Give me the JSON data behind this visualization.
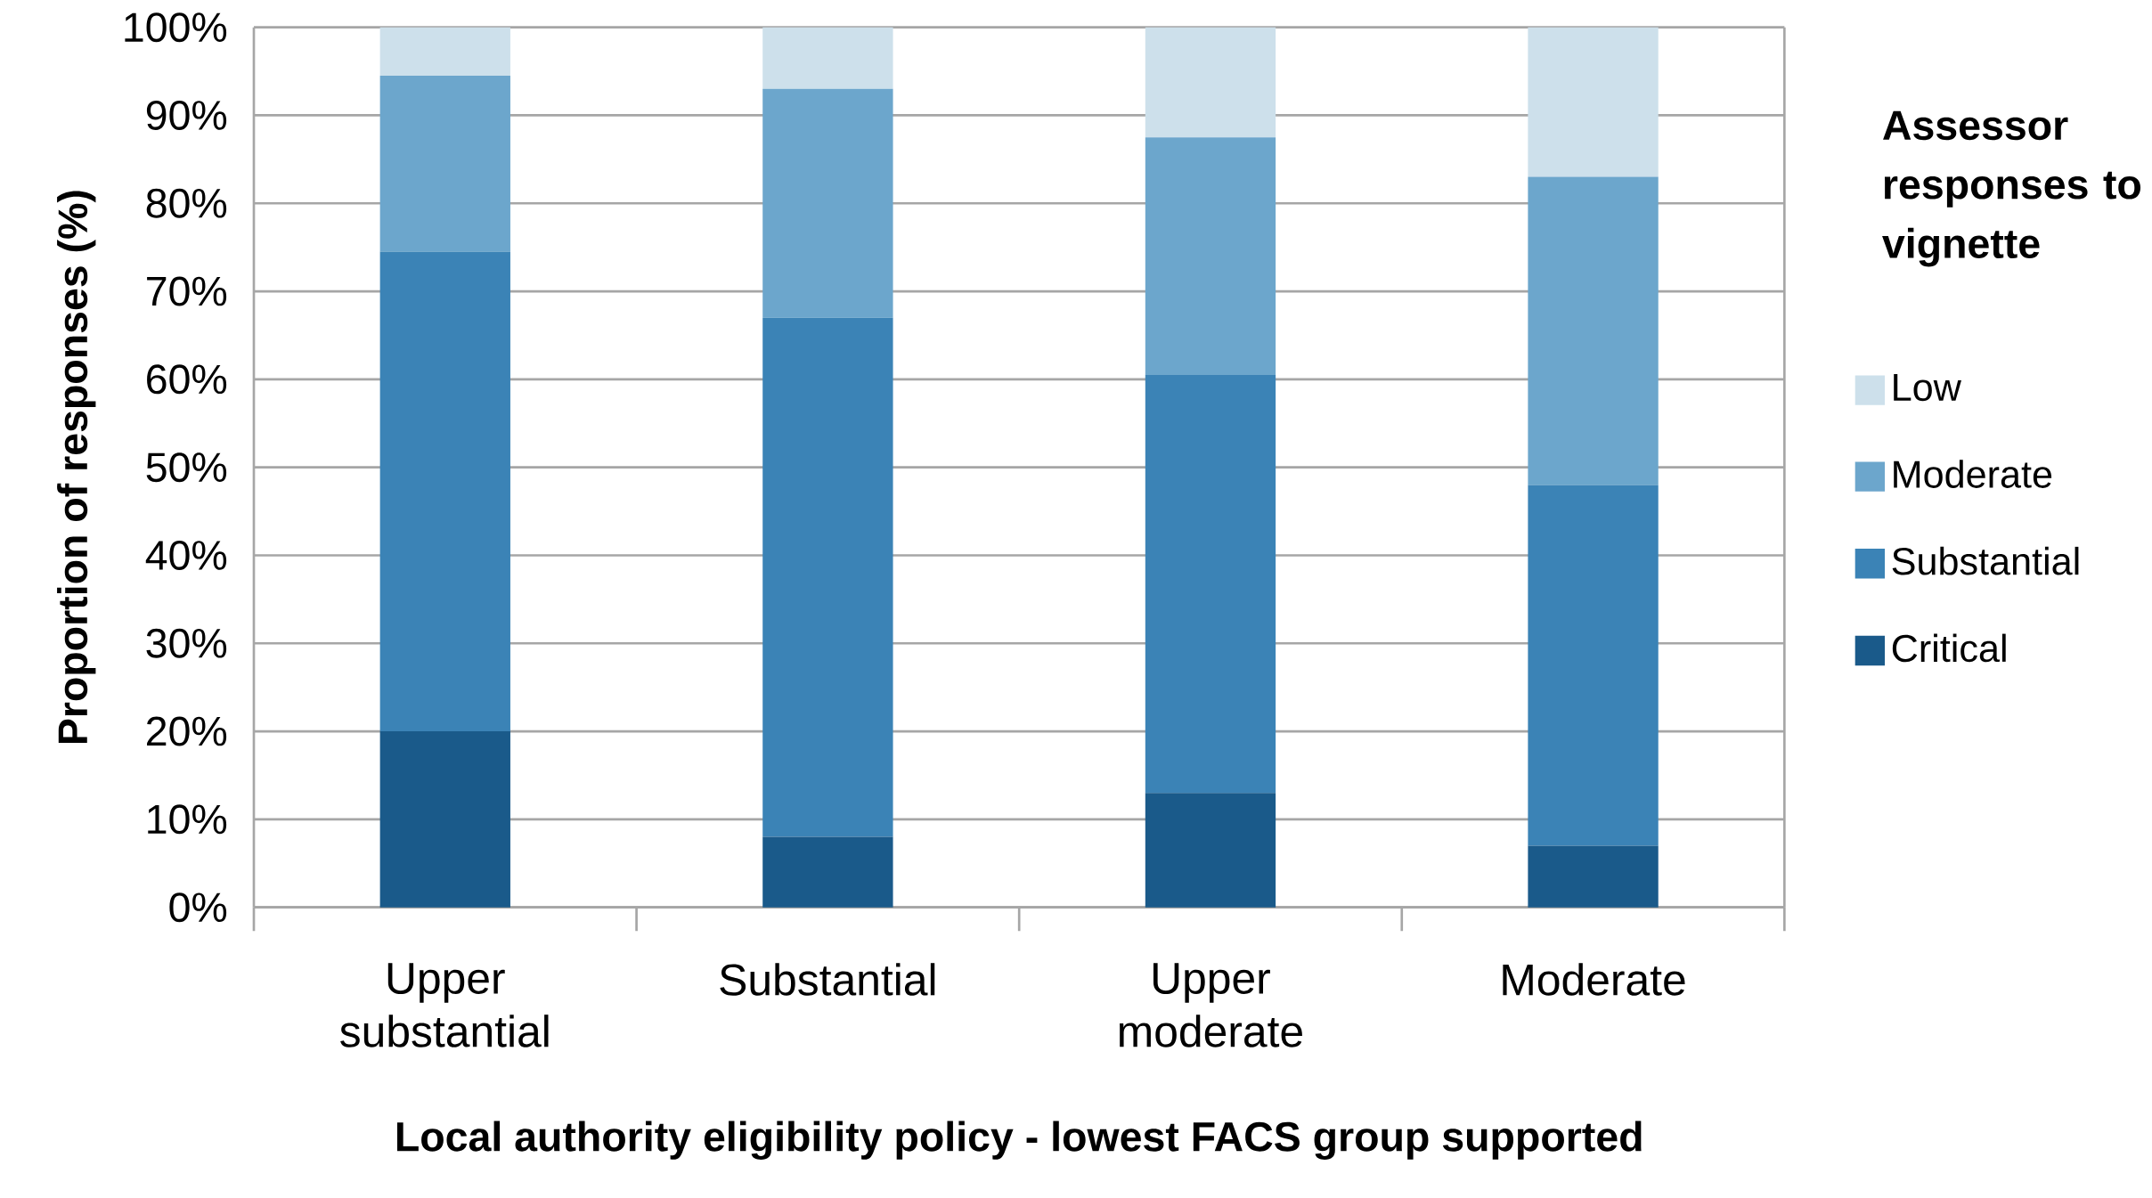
{
  "chart_data": {
    "type": "bar",
    "stacked": true,
    "xlabel": "Local authority eligibility policy - lowest FACS group supported",
    "ylabel": "Proportion of responses (%)",
    "legend_title": "Assessor responses to vignette",
    "categories": [
      "Upper substantial",
      "Substantial",
      "Upper moderate",
      "Moderate"
    ],
    "series": [
      {
        "name": "Critical",
        "color": "#1a5a8a",
        "values": [
          20,
          8,
          13,
          7
        ]
      },
      {
        "name": "Substantial",
        "color": "#3b83b6",
        "values": [
          54.5,
          59,
          47.5,
          41
        ]
      },
      {
        "name": "Moderate",
        "color": "#6ca6cc",
        "values": [
          20,
          26,
          27,
          35
        ]
      },
      {
        "name": "Low",
        "color": "#cde0eb",
        "values": [
          5.5,
          7,
          12.5,
          17
        ]
      }
    ],
    "ylim": [
      0,
      100
    ],
    "yticks": [
      {
        "value": 0,
        "label": "0%"
      },
      {
        "value": 10,
        "label": "10%"
      },
      {
        "value": 20,
        "label": "20%"
      },
      {
        "value": 30,
        "label": "30%"
      },
      {
        "value": 40,
        "label": "40%"
      },
      {
        "value": 50,
        "label": "50%"
      },
      {
        "value": 60,
        "label": "60%"
      },
      {
        "value": 70,
        "label": "70%"
      },
      {
        "value": 80,
        "label": "80%"
      },
      {
        "value": 90,
        "label": "90%"
      },
      {
        "value": 100,
        "label": "100%"
      }
    ],
    "grid": "y",
    "legend": "right"
  }
}
